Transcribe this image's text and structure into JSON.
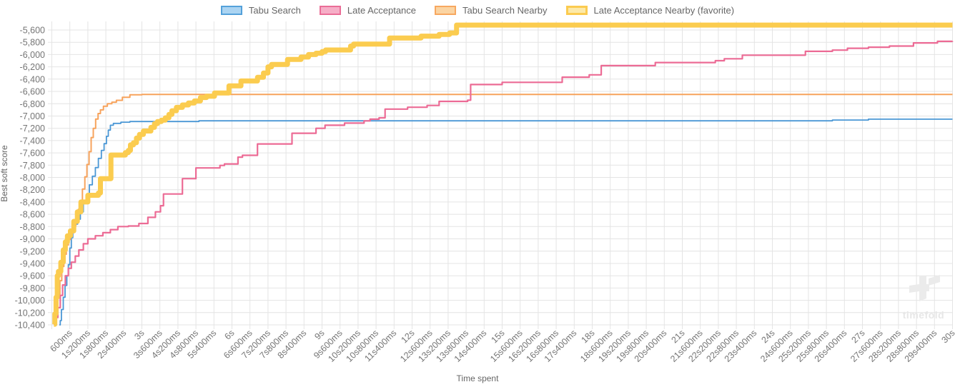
{
  "legend": {
    "items": [
      {
        "label": "Tabu Search",
        "fill": "#abd4f2",
        "border": "#54a1da",
        "border_width": 2
      },
      {
        "label": "Late Acceptance",
        "fill": "#f6aec7",
        "border": "#ea6d97",
        "border_width": 2
      },
      {
        "label": "Tabu Search Nearby",
        "fill": "#fbd4a2",
        "border": "#f7a860",
        "border_width": 2
      },
      {
        "label": "Late Acceptance Nearby (favorite)",
        "fill": "#fce9a9",
        "border": "#fbcb50",
        "border_width": 3
      }
    ]
  },
  "watermark": {
    "text": "timefold"
  },
  "chart_data": {
    "type": "line",
    "step": true,
    "title": "",
    "xlabel": "Time spent",
    "ylabel": "Best soft score",
    "xlim_seconds": [
      0,
      30
    ],
    "ylim": [
      -10400,
      -5460
    ],
    "grid": true,
    "legend_position": "top",
    "x_tick_step_s": 0.6,
    "x_tick_labels": [
      "600ms",
      "1s200ms",
      "1s800ms",
      "2s400ms",
      "3s",
      "3s600ms",
      "4s200ms",
      "4s800ms",
      "5s400ms",
      "6s",
      "6s600ms",
      "7s200ms",
      "7s800ms",
      "8s400ms",
      "9s",
      "9s600ms",
      "10s200ms",
      "10s800ms",
      "11s400ms",
      "12s",
      "12s600ms",
      "13s200ms",
      "13s800ms",
      "14s400ms",
      "15s",
      "15s600ms",
      "16s200ms",
      "16s800ms",
      "17s400ms",
      "18s",
      "18s600ms",
      "19s200ms",
      "19s800ms",
      "20s400ms",
      "21s",
      "21s600ms",
      "22s200ms",
      "22s800ms",
      "23s400ms",
      "24s",
      "24s600ms",
      "25s200ms",
      "25s800ms",
      "26s400ms",
      "27s",
      "27s600ms",
      "28s200ms",
      "28s800ms",
      "29s400ms",
      "30s"
    ],
    "y_tick_values": [
      -5600,
      -5800,
      -6000,
      -6200,
      -6400,
      -6600,
      -6800,
      -7000,
      -7200,
      -7400,
      -7600,
      -7800,
      -8000,
      -8200,
      -8400,
      -8600,
      -8800,
      -9000,
      -9200,
      -9400,
      -9600,
      -9800,
      -10000,
      -10200,
      -10400
    ],
    "y_tick_labels": [
      "-5,600",
      "-5,800",
      "-6,000",
      "-6,200",
      "-6,400",
      "-6,600",
      "-6,800",
      "-7,000",
      "-7,200",
      "-7,400",
      "-7,600",
      "-7,800",
      "-8,000",
      "-8,200",
      "-8,400",
      "-8,600",
      "-8,800",
      "-9,000",
      "-9,200",
      "-9,400",
      "-9,600",
      "-9,800",
      "-10,000",
      "-10,200",
      "-10,400"
    ],
    "series": [
      {
        "name": "Tabu Search",
        "color": "#4a97d5",
        "width": 1.8,
        "points": [
          [
            0.25,
            -10400
          ],
          [
            0.28,
            -10330
          ],
          [
            0.32,
            -10150
          ],
          [
            0.38,
            -9950
          ],
          [
            0.44,
            -9760
          ],
          [
            0.5,
            -9600
          ],
          [
            0.55,
            -9420
          ],
          [
            0.6,
            -9150
          ],
          [
            0.65,
            -8980
          ],
          [
            0.7,
            -8870
          ],
          [
            0.78,
            -8760
          ],
          [
            0.86,
            -8680
          ],
          [
            0.95,
            -8560
          ],
          [
            1.05,
            -8420
          ],
          [
            1.15,
            -8280
          ],
          [
            1.25,
            -8120
          ],
          [
            1.35,
            -7980
          ],
          [
            1.45,
            -7840
          ],
          [
            1.55,
            -7690
          ],
          [
            1.65,
            -7560
          ],
          [
            1.74,
            -7450
          ],
          [
            1.82,
            -7330
          ],
          [
            1.88,
            -7230
          ],
          [
            1.95,
            -7150
          ],
          [
            2.05,
            -7120
          ],
          [
            2.3,
            -7100
          ],
          [
            2.6,
            -7090
          ],
          [
            4.9,
            -7078
          ],
          [
            26.0,
            -7065
          ],
          [
            27.2,
            -7052
          ],
          [
            30,
            -7052
          ]
        ]
      },
      {
        "name": "Tabu Search Nearby",
        "color": "#f7a35c",
        "width": 2,
        "points": [
          [
            0.06,
            -10390
          ],
          [
            0.1,
            -10300
          ],
          [
            0.14,
            -10130
          ],
          [
            0.2,
            -9900
          ],
          [
            0.27,
            -9680
          ],
          [
            0.33,
            -9450
          ],
          [
            0.4,
            -9250
          ],
          [
            0.48,
            -9100
          ],
          [
            0.55,
            -9010
          ],
          [
            0.62,
            -8960
          ],
          [
            0.68,
            -8900
          ],
          [
            0.73,
            -8790
          ],
          [
            0.8,
            -8650
          ],
          [
            0.88,
            -8520
          ],
          [
            0.95,
            -8390
          ],
          [
            1.02,
            -8190
          ],
          [
            1.1,
            -7990
          ],
          [
            1.17,
            -7790
          ],
          [
            1.24,
            -7580
          ],
          [
            1.31,
            -7350
          ],
          [
            1.38,
            -7200
          ],
          [
            1.46,
            -7050
          ],
          [
            1.54,
            -6960
          ],
          [
            1.62,
            -6900
          ],
          [
            1.72,
            -6840
          ],
          [
            1.85,
            -6800
          ],
          [
            2.0,
            -6775
          ],
          [
            2.15,
            -6745
          ],
          [
            2.35,
            -6695
          ],
          [
            2.6,
            -6655
          ],
          [
            3.0,
            -6648
          ],
          [
            30,
            -6648
          ]
        ]
      },
      {
        "name": "Late Acceptance",
        "color": "#ec6b95",
        "width": 2.2,
        "points": [
          [
            0.1,
            -10370
          ],
          [
            0.14,
            -10280
          ],
          [
            0.2,
            -10120
          ],
          [
            0.28,
            -9920
          ],
          [
            0.36,
            -9750
          ],
          [
            0.45,
            -9600
          ],
          [
            0.55,
            -9480
          ],
          [
            0.65,
            -9380
          ],
          [
            0.78,
            -9280
          ],
          [
            0.9,
            -9180
          ],
          [
            1.05,
            -9080
          ],
          [
            1.2,
            -9000
          ],
          [
            1.45,
            -8950
          ],
          [
            1.7,
            -8900
          ],
          [
            1.95,
            -8850
          ],
          [
            2.2,
            -8800
          ],
          [
            2.55,
            -8790
          ],
          [
            2.9,
            -8750
          ],
          [
            3.2,
            -8650
          ],
          [
            3.45,
            -8560
          ],
          [
            3.62,
            -8460
          ],
          [
            3.72,
            -8270
          ],
          [
            4.35,
            -8020
          ],
          [
            4.8,
            -7845
          ],
          [
            5.6,
            -7805
          ],
          [
            5.75,
            -7780
          ],
          [
            6.2,
            -7670
          ],
          [
            6.35,
            -7640
          ],
          [
            6.85,
            -7455
          ],
          [
            8.0,
            -7280
          ],
          [
            8.8,
            -7200
          ],
          [
            9.1,
            -7150
          ],
          [
            9.75,
            -7115
          ],
          [
            10.4,
            -7080
          ],
          [
            10.6,
            -7052
          ],
          [
            10.9,
            -7030
          ],
          [
            11.1,
            -6888
          ],
          [
            11.85,
            -6858
          ],
          [
            12.5,
            -6828
          ],
          [
            12.9,
            -6762
          ],
          [
            13.85,
            -6742
          ],
          [
            13.95,
            -6488
          ],
          [
            15.0,
            -6452
          ],
          [
            17.0,
            -6368
          ],
          [
            17.9,
            -6330
          ],
          [
            18.3,
            -6180
          ],
          [
            20.1,
            -6130
          ],
          [
            22.1,
            -6100
          ],
          [
            22.4,
            -6068
          ],
          [
            23.0,
            -6010
          ],
          [
            25.1,
            -5948
          ],
          [
            26.0,
            -5928
          ],
          [
            26.5,
            -5898
          ],
          [
            27.2,
            -5880
          ],
          [
            27.9,
            -5862
          ],
          [
            28.7,
            -5810
          ],
          [
            29.5,
            -5785
          ],
          [
            30,
            -5782
          ]
        ]
      },
      {
        "name": "Late Acceptance Nearby (favorite)",
        "color": "#fbcc4f",
        "width": 7,
        "points": [
          [
            0.07,
            -10390
          ],
          [
            0.1,
            -10220
          ],
          [
            0.14,
            -9950
          ],
          [
            0.18,
            -9600
          ],
          [
            0.22,
            -9530
          ],
          [
            0.3,
            -9380
          ],
          [
            0.38,
            -9180
          ],
          [
            0.45,
            -9050
          ],
          [
            0.52,
            -8950
          ],
          [
            0.62,
            -8870
          ],
          [
            0.73,
            -8715
          ],
          [
            0.85,
            -8560
          ],
          [
            0.97,
            -8400
          ],
          [
            1.2,
            -8290
          ],
          [
            1.55,
            -8255
          ],
          [
            1.62,
            -8020
          ],
          [
            1.97,
            -7635
          ],
          [
            2.45,
            -7595
          ],
          [
            2.55,
            -7560
          ],
          [
            2.62,
            -7470
          ],
          [
            2.72,
            -7435
          ],
          [
            2.82,
            -7360
          ],
          [
            2.92,
            -7300
          ],
          [
            3.05,
            -7245
          ],
          [
            3.3,
            -7185
          ],
          [
            3.42,
            -7125
          ],
          [
            3.52,
            -7090
          ],
          [
            3.65,
            -7068
          ],
          [
            3.78,
            -7030
          ],
          [
            3.9,
            -6975
          ],
          [
            4.0,
            -6915
          ],
          [
            4.15,
            -6860
          ],
          [
            4.35,
            -6820
          ],
          [
            4.55,
            -6788
          ],
          [
            4.75,
            -6755
          ],
          [
            4.95,
            -6700
          ],
          [
            5.15,
            -6678
          ],
          [
            5.42,
            -6625
          ],
          [
            5.9,
            -6510
          ],
          [
            6.3,
            -6430
          ],
          [
            6.85,
            -6370
          ],
          [
            7.05,
            -6300
          ],
          [
            7.2,
            -6200
          ],
          [
            7.32,
            -6160
          ],
          [
            7.85,
            -6080
          ],
          [
            8.3,
            -6040
          ],
          [
            8.55,
            -6000
          ],
          [
            8.8,
            -5978
          ],
          [
            9.0,
            -5952
          ],
          [
            9.12,
            -5925
          ],
          [
            9.95,
            -5862
          ],
          [
            10.05,
            -5830
          ],
          [
            11.25,
            -5730
          ],
          [
            12.3,
            -5700
          ],
          [
            12.9,
            -5672
          ],
          [
            13.25,
            -5648
          ],
          [
            13.48,
            -5520
          ],
          [
            30,
            -5520
          ]
        ]
      }
    ]
  }
}
